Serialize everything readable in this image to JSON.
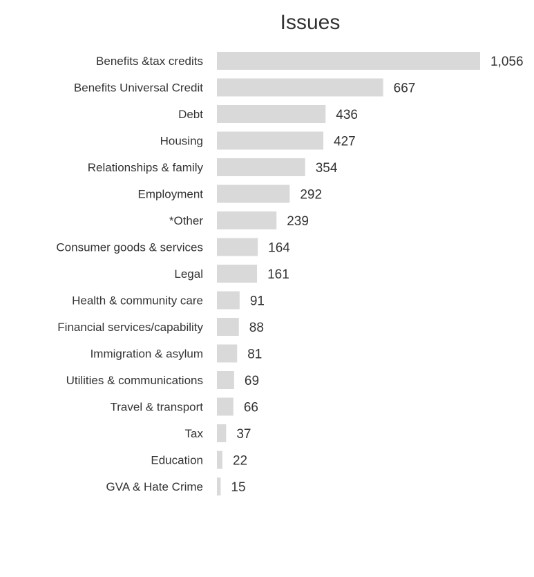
{
  "chart_data": {
    "type": "bar",
    "orientation": "horizontal",
    "title": "Issues",
    "categories": [
      "Benefits &tax credits",
      "Benefits Universal Credit",
      "Debt",
      "Housing",
      "Relationships & family",
      "Employment",
      "*Other",
      "Consumer goods & services",
      "Legal",
      "Health & community care",
      "Financial services/capability",
      "Immigration & asylum",
      "Utilities & communications",
      "Travel & transport",
      "Tax",
      "Education",
      "GVA & Hate Crime"
    ],
    "values": [
      1056,
      667,
      436,
      427,
      354,
      292,
      239,
      164,
      161,
      91,
      88,
      81,
      69,
      66,
      37,
      22,
      15
    ],
    "value_labels": [
      "1,056",
      "667",
      "436",
      "427",
      "354",
      "292",
      "239",
      "164",
      "161",
      "91",
      "88",
      "81",
      "69",
      "66",
      "37",
      "22",
      "15"
    ],
    "xlim": [
      0,
      1056
    ],
    "grid": false,
    "legend": "none",
    "bar_color": "#d9d9d9"
  }
}
